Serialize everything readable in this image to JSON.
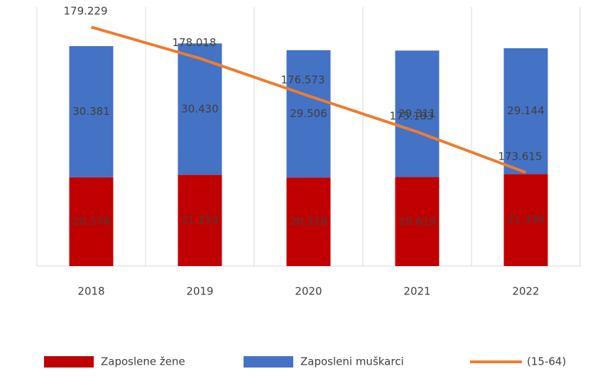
{
  "chart_data": {
    "type": "bar",
    "stacked": true,
    "categories": [
      "2018",
      "2019",
      "2020",
      "2021",
      "2022"
    ],
    "series": [
      {
        "name": "Zaposlene žene",
        "color": "#c00000",
        "values": [
          20.576,
          21.153,
          20.518,
          20.619,
          21.33
        ],
        "value_labels": [
          "20.576",
          "21.153",
          "20.518",
          "20.619",
          "21.330"
        ]
      },
      {
        "name": "Zaposleni muškarci",
        "color": "#4472c4",
        "values": [
          30.381,
          30.43,
          29.506,
          29.311,
          29.144
        ],
        "value_labels": [
          "30.381",
          "30.430",
          "29.506",
          "29.311",
          "29.144"
        ]
      },
      {
        "name": "(15-64)",
        "type": "line",
        "axis": "y2",
        "color": "#ed7d31",
        "values": [
          179.229,
          178.018,
          176.573,
          175.183,
          173.615
        ],
        "value_labels": [
          "179.229",
          "178.018",
          "176.573",
          "175.183",
          "173.615"
        ]
      }
    ],
    "ylim": [
      0,
      60
    ],
    "y2lim": [
      170,
      180
    ],
    "legend": "bottom"
  }
}
